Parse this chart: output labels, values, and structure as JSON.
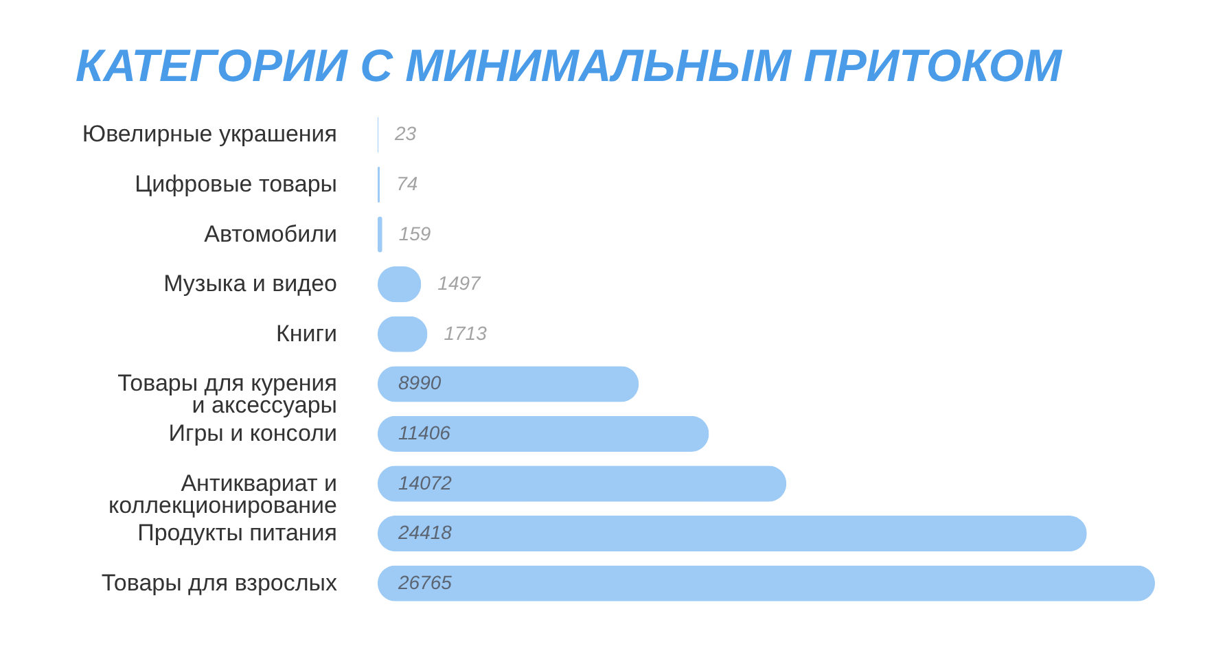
{
  "chart_data": {
    "type": "bar",
    "title": "КАТЕГОРИИ С МИНИМАЛЬНЫМ ПРИТОКОМ",
    "orientation": "horizontal",
    "categories": [
      "Ювелирные украшения",
      "Цифровые товары",
      "Автомобили",
      "Музыка и видео",
      "Книги",
      "Товары для курения и аксессуары",
      "Игры и консоли",
      "Антиквариат и коллекционирование",
      "Продукты питания",
      "Товары для взрослых"
    ],
    "values": [
      23,
      74,
      159,
      1497,
      1713,
      8990,
      11406,
      14072,
      24418,
      26765
    ],
    "color": "#9ecbf6",
    "data_labels": true,
    "tick_labels": "y"
  }
}
